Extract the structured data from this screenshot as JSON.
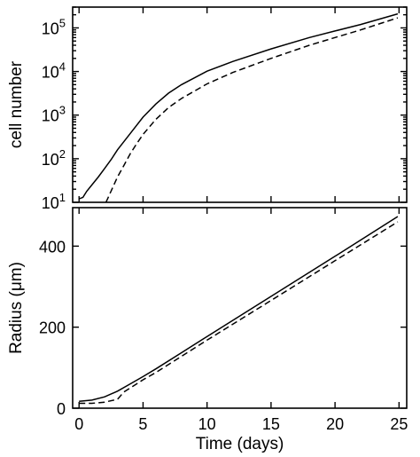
{
  "chart_data": [
    {
      "type": "line",
      "id": "top",
      "xlabel": "",
      "ylabel": "cell number",
      "yscale": "log",
      "xlim": [
        -0.5,
        25.6
      ],
      "ylim": [
        10,
        300000
      ],
      "xticks": [
        0,
        5,
        10,
        15,
        20,
        25
      ],
      "yticks": [
        {
          "value": 10,
          "base": "10",
          "exp": "1"
        },
        {
          "value": 100,
          "base": "10",
          "exp": "2"
        },
        {
          "value": 1000,
          "base": "10",
          "exp": "3"
        },
        {
          "value": 10000,
          "base": "10",
          "exp": "4"
        },
        {
          "value": 100000,
          "base": "10",
          "exp": "5"
        }
      ],
      "series": [
        {
          "style": "solid",
          "x": [
            0.0,
            0.3,
            0.6,
            1.0,
            1.5,
            2.0,
            2.5,
            3.0,
            4.0,
            5.0,
            6.0,
            7.0,
            8.0,
            10.0,
            12.0,
            15.0,
            18.0,
            20.0,
            22.0,
            24.9
          ],
          "y": [
            12,
            13,
            18,
            25,
            38,
            60,
            95,
            160,
            380,
            900,
            1800,
            3200,
            5000,
            10200,
            17000,
            33000,
            60000,
            85000,
            120000,
            210000
          ]
        },
        {
          "style": "dashed",
          "x": [
            2.1,
            2.5,
            3.0,
            3.5,
            4.0,
            4.5,
            5.0,
            6.0,
            7.0,
            8.0,
            10.0,
            12.0,
            15.0,
            18.0,
            20.0,
            22.0,
            24.9
          ],
          "y": [
            10,
            18,
            38,
            70,
            130,
            220,
            360,
            800,
            1500,
            2400,
            5200,
            9500,
            20000,
            40000,
            60000,
            90000,
            170000
          ]
        }
      ]
    },
    {
      "type": "line",
      "id": "bottom",
      "xlabel": "Time  (days)",
      "ylabel": "Radius  (μm)",
      "yscale": "linear",
      "xlim": [
        -0.5,
        25.6
      ],
      "ylim": [
        0,
        495
      ],
      "xticks": [
        0,
        5,
        10,
        15,
        20,
        25
      ],
      "yticks": [
        0,
        200,
        400
      ],
      "series": [
        {
          "style": "solid",
          "x": [
            0.0,
            1.0,
            2.0,
            3.0,
            4.0,
            5.0,
            6.0,
            8.0,
            10.0,
            15.0,
            20.0,
            24.9
          ],
          "y": [
            17,
            20,
            28,
            42,
            60,
            78,
            97,
            137,
            177,
            276,
            375,
            473
          ]
        },
        {
          "style": "dashed",
          "x": [
            0.0,
            1.0,
            2.0,
            3.0,
            3.5,
            4.0,
            5.0,
            6.0,
            8.0,
            10.0,
            15.0,
            20.0,
            24.9
          ],
          "y": [
            12,
            12,
            15,
            22,
            40,
            50,
            70,
            88,
            128,
            168,
            266,
            364,
            460
          ]
        }
      ]
    }
  ]
}
